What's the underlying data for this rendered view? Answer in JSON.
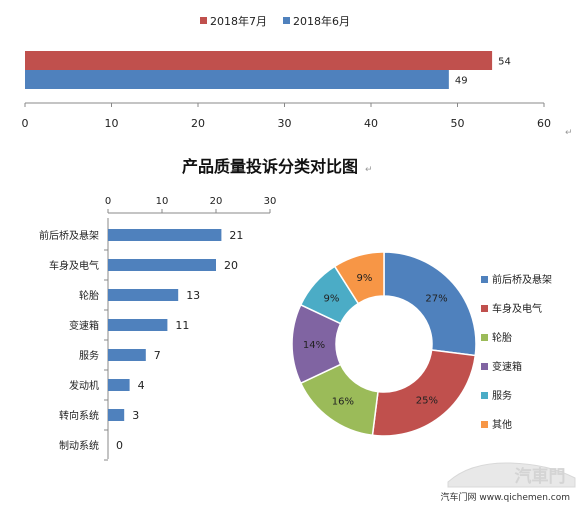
{
  "chart_data": [
    {
      "type": "bar",
      "orientation": "horizontal",
      "series": [
        {
          "name": "2018年7月",
          "color": "#C0504D",
          "values": [
            54
          ]
        },
        {
          "name": "2018年6月",
          "color": "#4F81BD",
          "values": [
            49
          ]
        }
      ],
      "xlim": [
        0,
        60
      ],
      "xticks": [
        "0",
        "10",
        "20",
        "30",
        "40",
        "50",
        "60"
      ],
      "legend": "top",
      "grid": false
    },
    {
      "type": "bar",
      "orientation": "horizontal",
      "categories": [
        "前后桥及悬架",
        "车身及电气",
        "轮胎",
        "变速箱",
        "服务",
        "发动机",
        "转向系统",
        "制动系统"
      ],
      "values": [
        21,
        20,
        13,
        11,
        7,
        4,
        3,
        0
      ],
      "color": "#4F81BD",
      "xlim": [
        0,
        30
      ],
      "xticks": [
        "0",
        "10",
        "20",
        "30"
      ],
      "grid": false
    },
    {
      "type": "pie",
      "style": "donut",
      "categories": [
        "前后桥及悬架",
        "车身及电气",
        "轮胎",
        "变速箱",
        "服务",
        "其他"
      ],
      "values": [
        27,
        25,
        16,
        14,
        9,
        9
      ],
      "labels": [
        "27%",
        "25%",
        "16%",
        "14%",
        "9%",
        "9%"
      ],
      "colors": [
        "#4F81BD",
        "#C0504D",
        "#9BBB59",
        "#8064A2",
        "#4BACC6",
        "#F79646"
      ],
      "legend": "right"
    }
  ],
  "page": {
    "title": "产品质量投诉分类对比图",
    "return_mark": "↵",
    "watermark": "汽車門",
    "footer_source": "汽车门网 www.qichemen.com"
  }
}
